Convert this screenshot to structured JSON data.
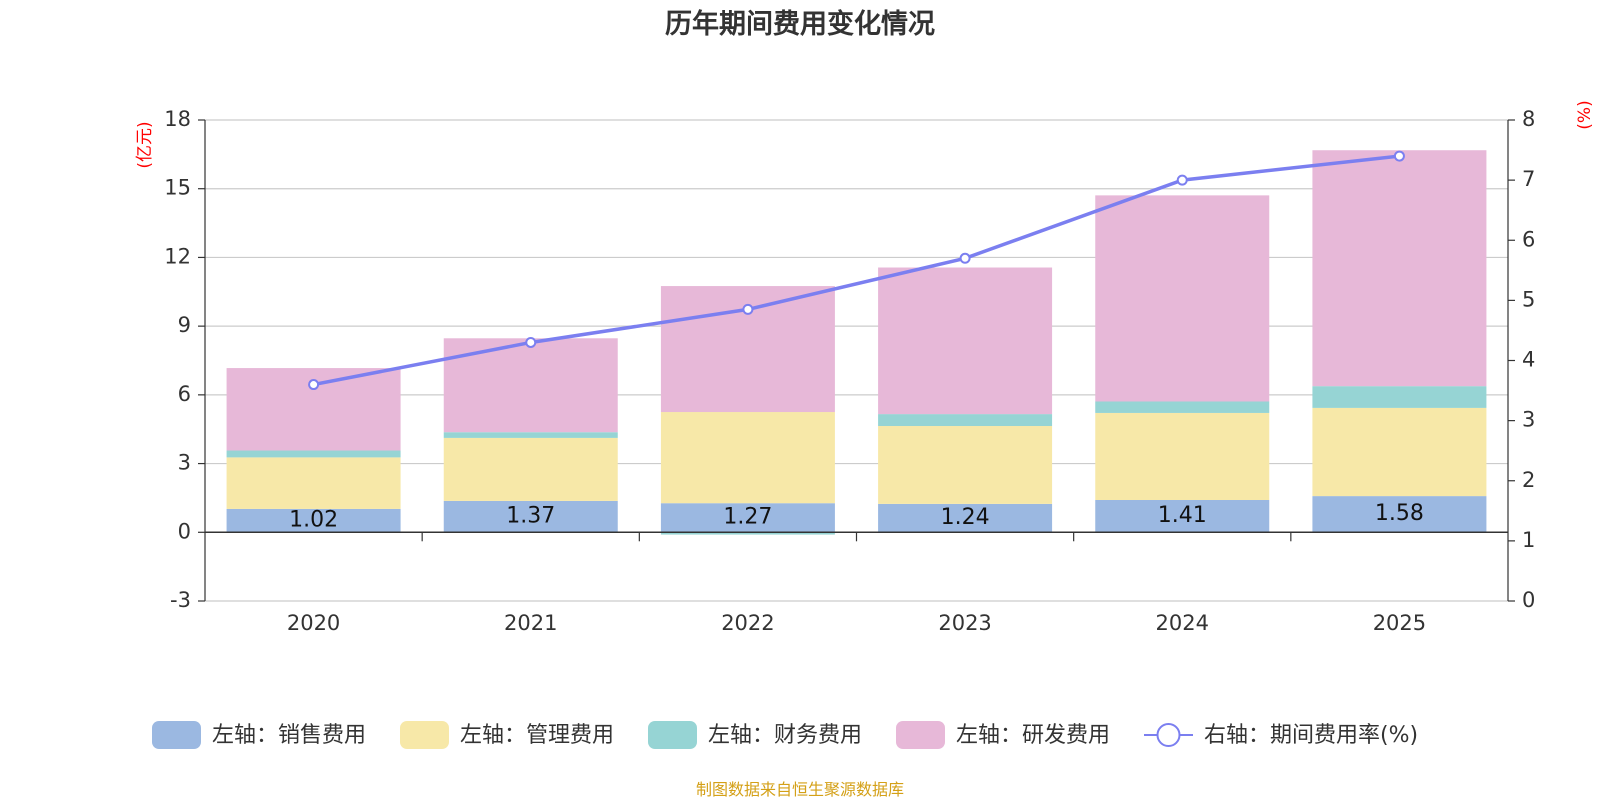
{
  "chart_data": {
    "type": "bar",
    "title": "历年期间费用变化情况",
    "categories": [
      "2020",
      "2021",
      "2022",
      "2023",
      "2024",
      "2025"
    ],
    "left_axis": {
      "unit": "(亿元)",
      "ylim": [
        -3,
        18
      ],
      "ticks": [
        -3,
        0,
        3,
        6,
        9,
        12,
        15,
        18
      ]
    },
    "right_axis": {
      "unit": "(%)",
      "ylim": [
        0,
        8
      ],
      "ticks": [
        0,
        1,
        2,
        3,
        4,
        5,
        6,
        7,
        8
      ]
    },
    "series": [
      {
        "name": "左轴：销售费用",
        "type": "bar",
        "axis": "left",
        "color": "#9bb8e1",
        "values": [
          1.02,
          1.37,
          1.27,
          1.24,
          1.41,
          1.58
        ],
        "labels": [
          "1.02",
          "1.37",
          "1.27",
          "1.24",
          "1.41",
          "1.58"
        ]
      },
      {
        "name": "左轴：管理费用",
        "type": "bar",
        "axis": "left",
        "color": "#f7e8a8",
        "values": [
          2.25,
          2.75,
          3.98,
          3.4,
          3.8,
          3.85
        ]
      },
      {
        "name": "左轴：财务费用",
        "type": "bar",
        "axis": "left",
        "color": "#96d4d4",
        "values": [
          0.3,
          0.25,
          -0.1,
          0.52,
          0.5,
          0.95
        ]
      },
      {
        "name": "左轴：研发费用",
        "type": "bar",
        "axis": "left",
        "color": "#e7b8d8",
        "values": [
          3.6,
          4.1,
          5.5,
          6.4,
          9.0,
          10.3
        ]
      },
      {
        "name": "右轴：期间费用率(%)",
        "type": "line",
        "axis": "right",
        "color": "#7b7ff0",
        "values": [
          3.6,
          4.3,
          4.85,
          5.7,
          7.0,
          7.4
        ]
      }
    ]
  },
  "source": "制图数据来自恒生聚源数据库"
}
